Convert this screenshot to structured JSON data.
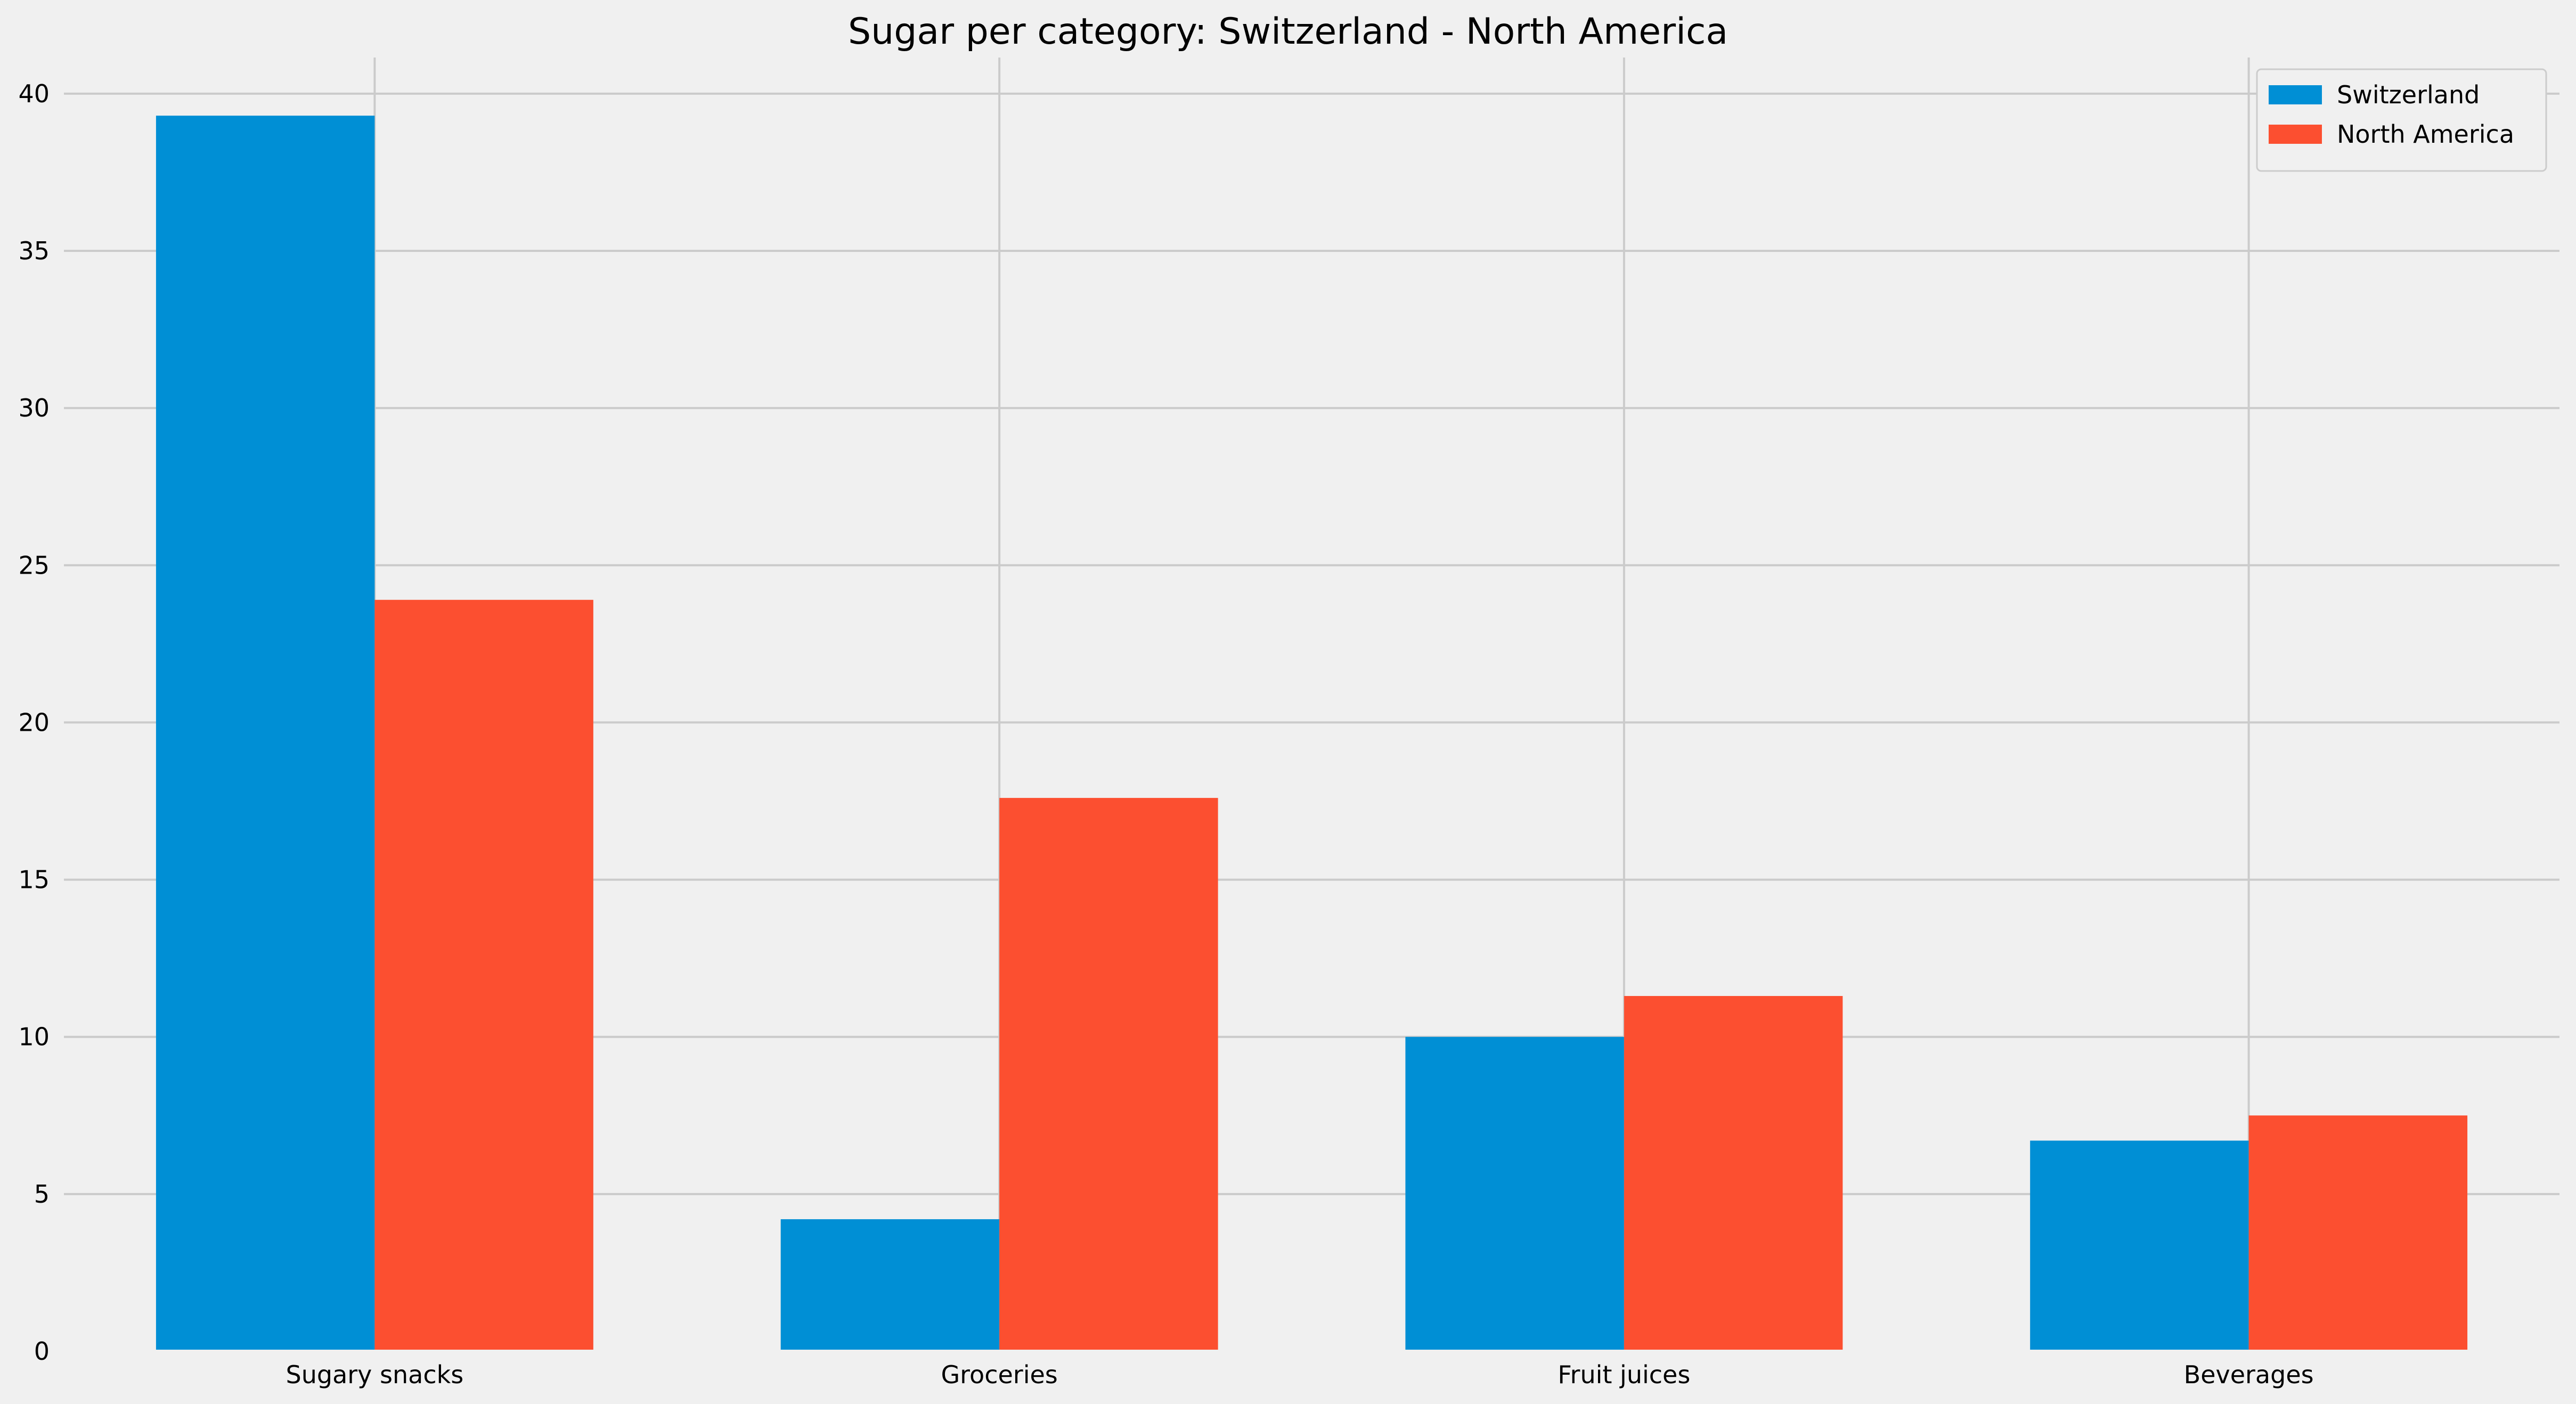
{
  "chart_data": {
    "type": "bar",
    "title": "Sugar per category: Switzerland - North America",
    "xlabel": "",
    "ylabel": "",
    "categories": [
      "Sugary snacks",
      "Groceries",
      "Fruit juices",
      "Beverages"
    ],
    "series": [
      {
        "name": "Switzerland",
        "values": [
          39.3,
          4.2,
          10.0,
          6.7
        ],
        "color": "#008fd5"
      },
      {
        "name": "North America",
        "values": [
          23.9,
          17.6,
          11.3,
          7.5
        ],
        "color": "#fc4f30"
      }
    ],
    "ylim": [
      0,
      41.2
    ],
    "yticks": [
      0,
      5,
      10,
      15,
      20,
      25,
      30,
      35,
      40
    ],
    "grid": true,
    "legend_position": "top-right"
  },
  "colors": {
    "background": "#f0f0f0",
    "grid": "#cbcbcb"
  }
}
